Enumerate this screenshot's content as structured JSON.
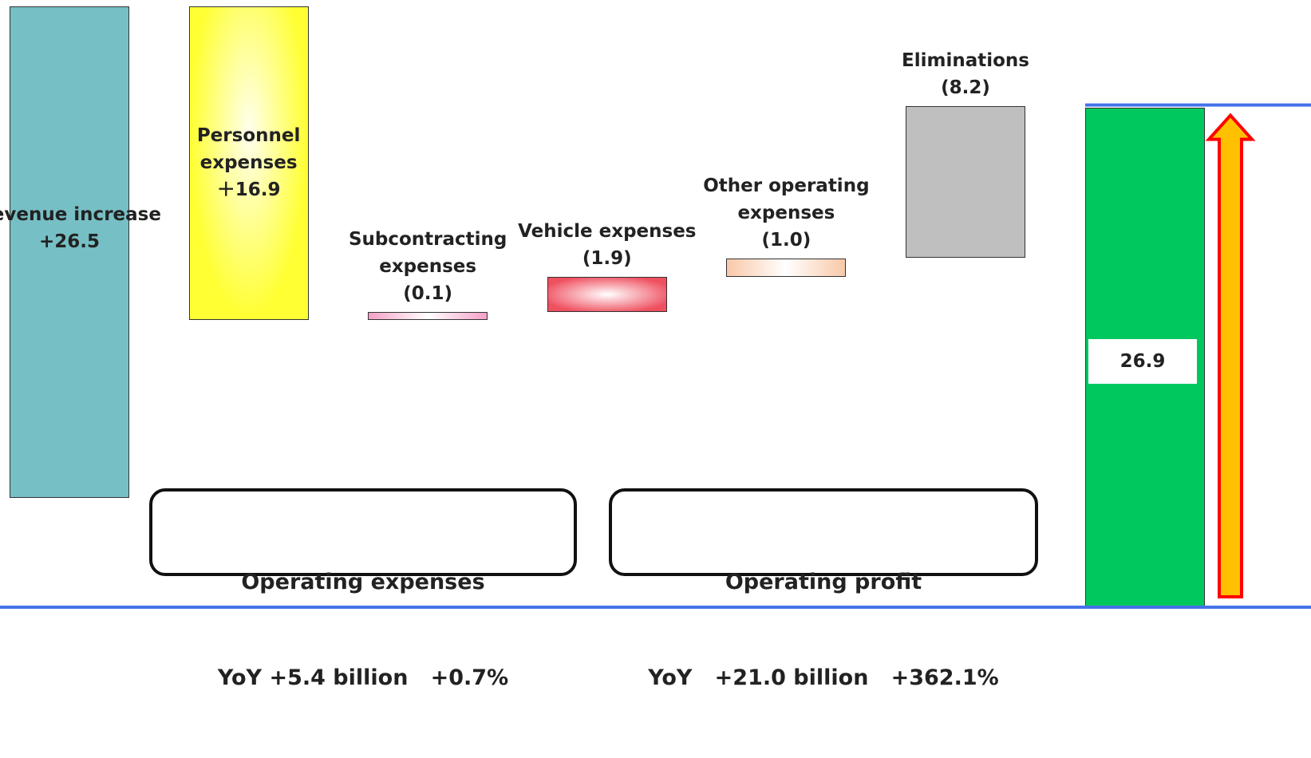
{
  "chart_data": {
    "type": "waterfall",
    "categories": [
      "Revenue increase",
      "Personnel expenses",
      "Subcontracting expenses",
      "Vehicle expenses",
      "Other operating expenses",
      "Eliminations"
    ],
    "values": [
      26.5,
      16.9,
      -0.1,
      -1.9,
      -1.0,
      -8.2
    ],
    "value_labels": [
      "+26.5",
      "＋16.9",
      "(0.1)",
      "(1.9)",
      "(1.0)",
      "(8.2)"
    ],
    "colors": [
      "#76bfc4",
      "#ffff33",
      "#f5a0c8",
      "#ef5060",
      "#f8c8a8",
      "#bfbfbf"
    ],
    "total": {
      "value": 26.9,
      "color": "#00c85f"
    },
    "annotations": [
      {
        "title": "Operating expenses",
        "text": "YoY +5.4 billion   +0.7%"
      },
      {
        "title": "Operating profit",
        "text": "YoY   +21.0 billion   +362.1%"
      }
    ]
  }
}
